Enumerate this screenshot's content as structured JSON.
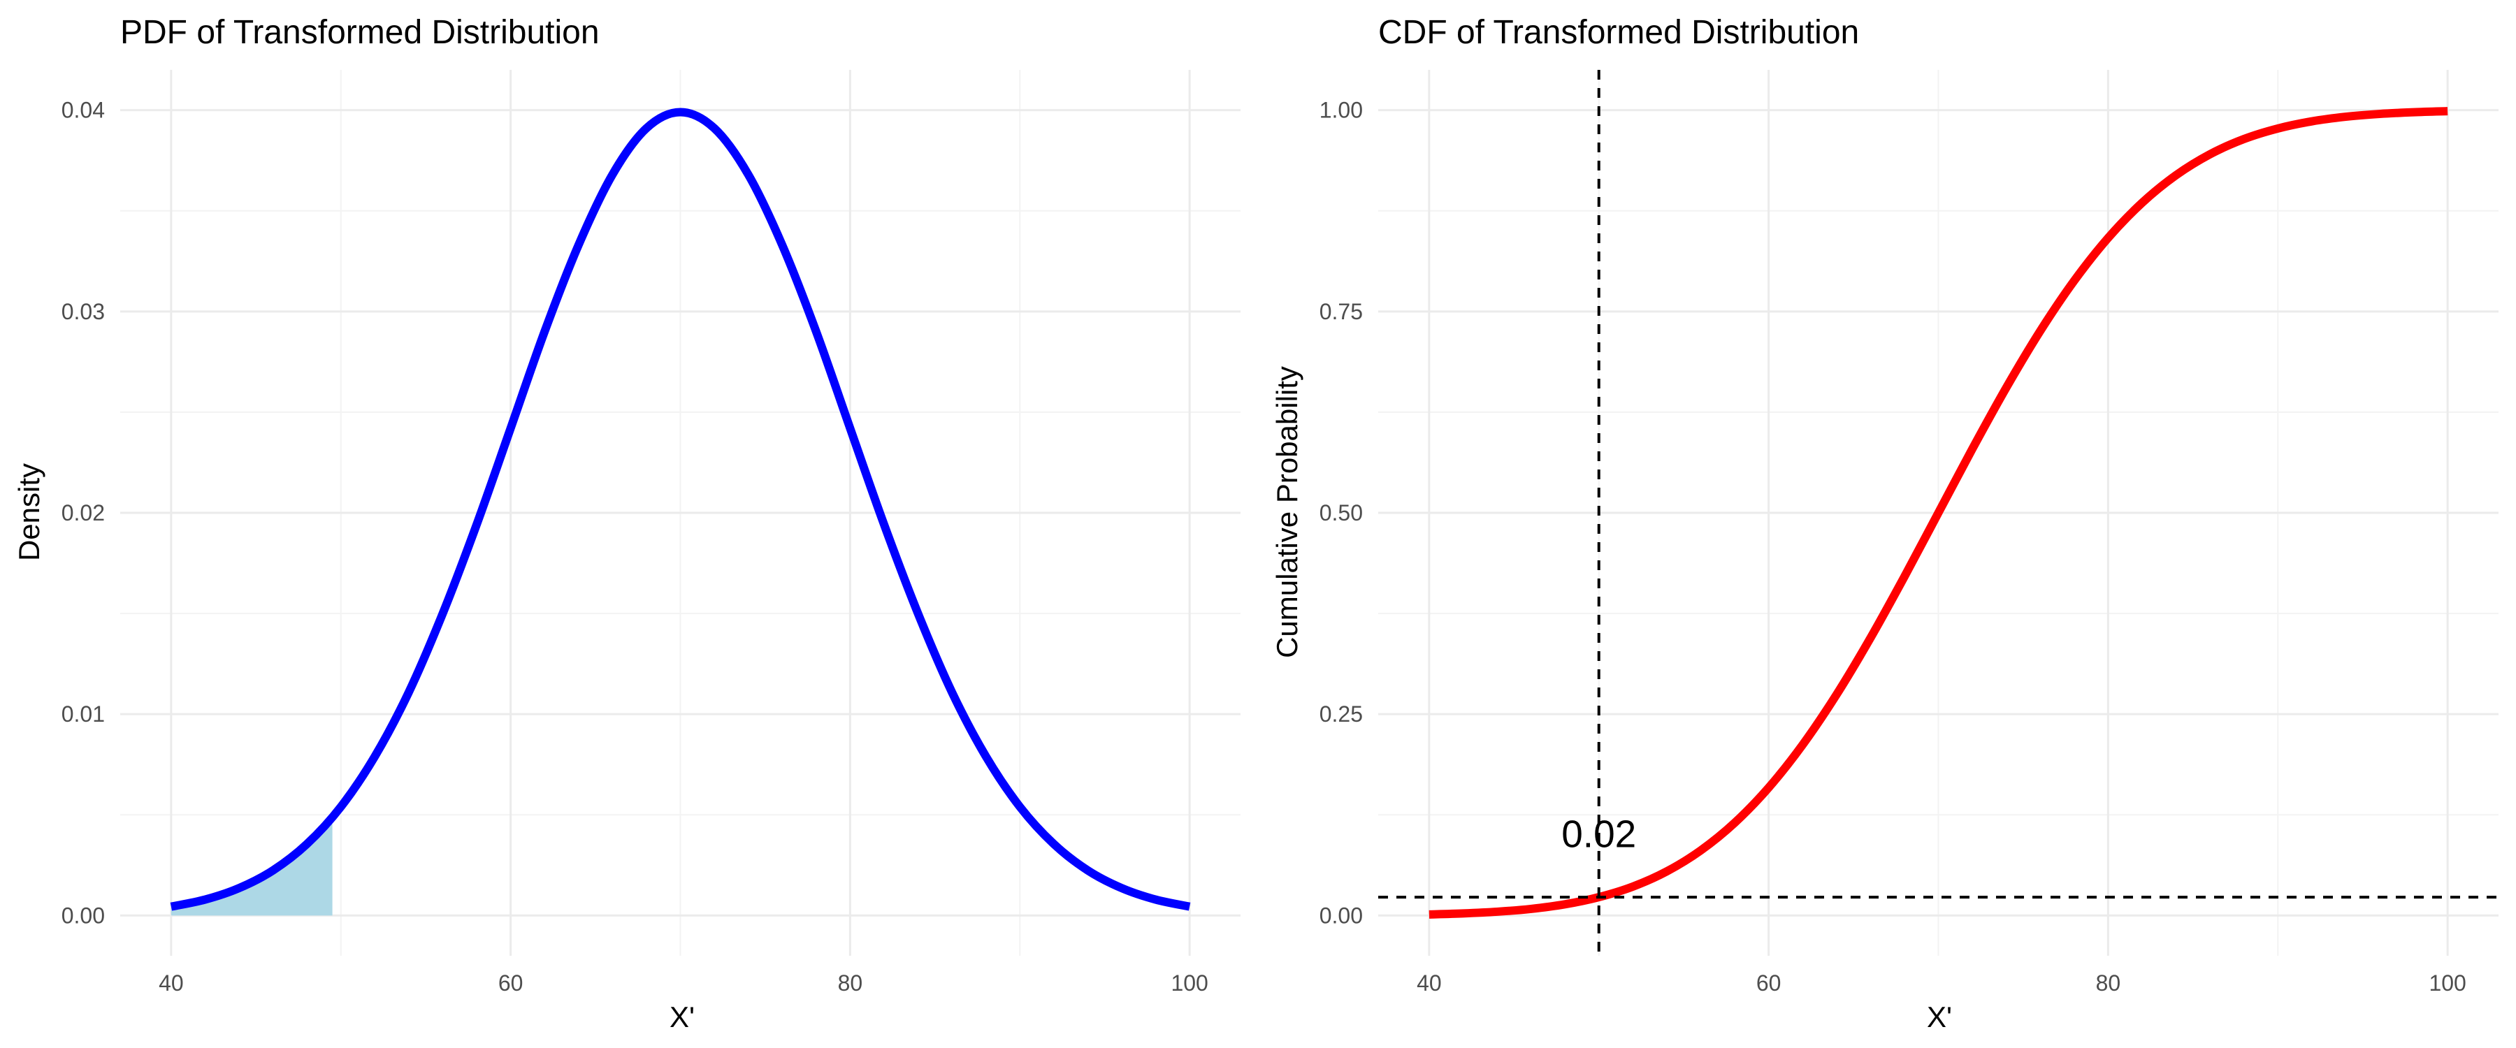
{
  "chart_data": [
    {
      "type": "area",
      "title": "PDF of Transformed Distribution",
      "xlabel": "X'",
      "ylabel": "Density",
      "xlim": [
        40,
        100
      ],
      "ylim": [
        0,
        0.04
      ],
      "x_ticks": [
        "40",
        "60",
        "80",
        "100"
      ],
      "y_ticks": [
        "0.00",
        "0.01",
        "0.02",
        "0.03",
        "0.04"
      ],
      "grid": true,
      "distribution": {
        "family": "normal",
        "mean": 70,
        "sd": 10
      },
      "series": [
        {
          "kind": "line",
          "color": "#0000ff",
          "x": [
            40,
            42,
            44,
            46,
            48,
            50,
            52,
            54,
            56,
            58,
            60,
            62,
            64,
            66,
            68,
            70,
            72,
            74,
            76,
            78,
            80,
            82,
            84,
            86,
            88,
            90,
            92,
            94,
            96,
            98,
            100
          ],
          "y": [
            0.00044,
            0.00079,
            0.00136,
            0.00224,
            0.00355,
            0.0054,
            0.0079,
            0.01109,
            0.015,
            0.01942,
            0.0242,
            0.029,
            0.0333,
            0.0368,
            0.0391,
            0.0399,
            0.0391,
            0.0368,
            0.0333,
            0.029,
            0.0242,
            0.01942,
            0.015,
            0.01109,
            0.0079,
            0.0054,
            0.00355,
            0.00224,
            0.00136,
            0.00079,
            0.00044
          ]
        },
        {
          "kind": "shaded-area",
          "color": "#add8e6",
          "x_range": [
            40,
            49.5
          ]
        }
      ]
    },
    {
      "type": "line",
      "title": "CDF of Transformed Distribution",
      "xlabel": "X'",
      "ylabel": "Cumulative Probability",
      "xlim": [
        40,
        100
      ],
      "ylim": [
        0,
        1
      ],
      "x_ticks": [
        "40",
        "60",
        "80",
        "100"
      ],
      "y_ticks": [
        "0.00",
        "0.25",
        "0.50",
        "0.75",
        "1.00"
      ],
      "grid": true,
      "series": [
        {
          "kind": "line",
          "color": "#ff0000",
          "x": [
            40,
            42,
            44,
            46,
            48,
            50,
            52,
            54,
            56,
            58,
            60,
            62,
            64,
            66,
            68,
            70,
            72,
            74,
            76,
            78,
            80,
            82,
            84,
            86,
            88,
            90,
            92,
            94,
            96,
            98,
            100
          ],
          "y": [
            0.0013,
            0.0026,
            0.0047,
            0.0082,
            0.0139,
            0.0228,
            0.0359,
            0.0548,
            0.0808,
            0.1151,
            0.1587,
            0.2119,
            0.2743,
            0.3446,
            0.4207,
            0.5,
            0.5793,
            0.6554,
            0.7257,
            0.7881,
            0.8413,
            0.8849,
            0.9192,
            0.9452,
            0.9641,
            0.9772,
            0.9861,
            0.9918,
            0.9953,
            0.9974,
            0.9987
          ]
        }
      ],
      "reference_lines": [
        {
          "orientation": "vertical",
          "x": 50,
          "style": "dashed",
          "color": "#000000"
        },
        {
          "orientation": "horizontal",
          "y": 0.0228,
          "style": "dashed",
          "color": "#000000"
        }
      ],
      "annotations": [
        {
          "text": "0.02",
          "x": 50,
          "y": 0.085
        }
      ]
    }
  ]
}
